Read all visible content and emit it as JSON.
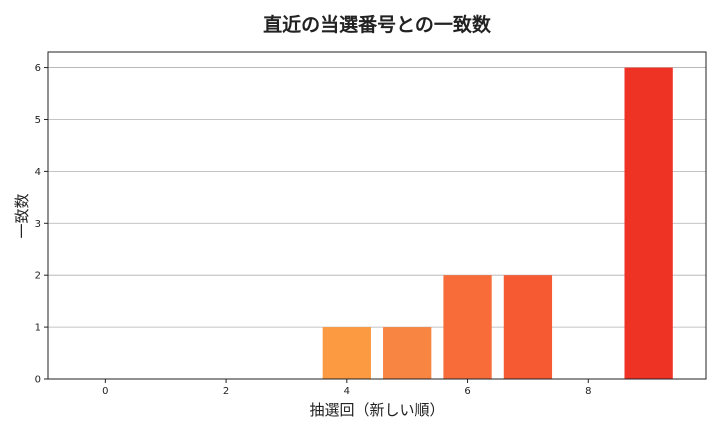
{
  "chart_data": {
    "type": "bar",
    "title": "直近の当選番号との一致数",
    "xlabel": "抽選回（新しい順）",
    "ylabel": "一致数",
    "x": [
      0,
      1,
      2,
      3,
      4,
      5,
      6,
      7,
      8,
      9
    ],
    "values": [
      0,
      0,
      0,
      0,
      1,
      1,
      2,
      2,
      0,
      6
    ],
    "xlim": [
      -0.95,
      9.95
    ],
    "ylim": [
      0,
      6.3
    ],
    "xticks": [
      0,
      2,
      4,
      6,
      8
    ],
    "yticks": [
      0,
      1,
      2,
      3,
      4,
      5,
      6
    ],
    "grid": "horizontal",
    "colors": {
      "bars": [
        "#fb9a40",
        "#fb9a40",
        "#fb9a40",
        "#fb9a40",
        "#fb9a40",
        "#f98542",
        "#f86c3a",
        "#f65a32",
        "#f24a2b",
        "#ee3224"
      ],
      "grid": "#b0b0b0",
      "axis": "#222222"
    }
  }
}
